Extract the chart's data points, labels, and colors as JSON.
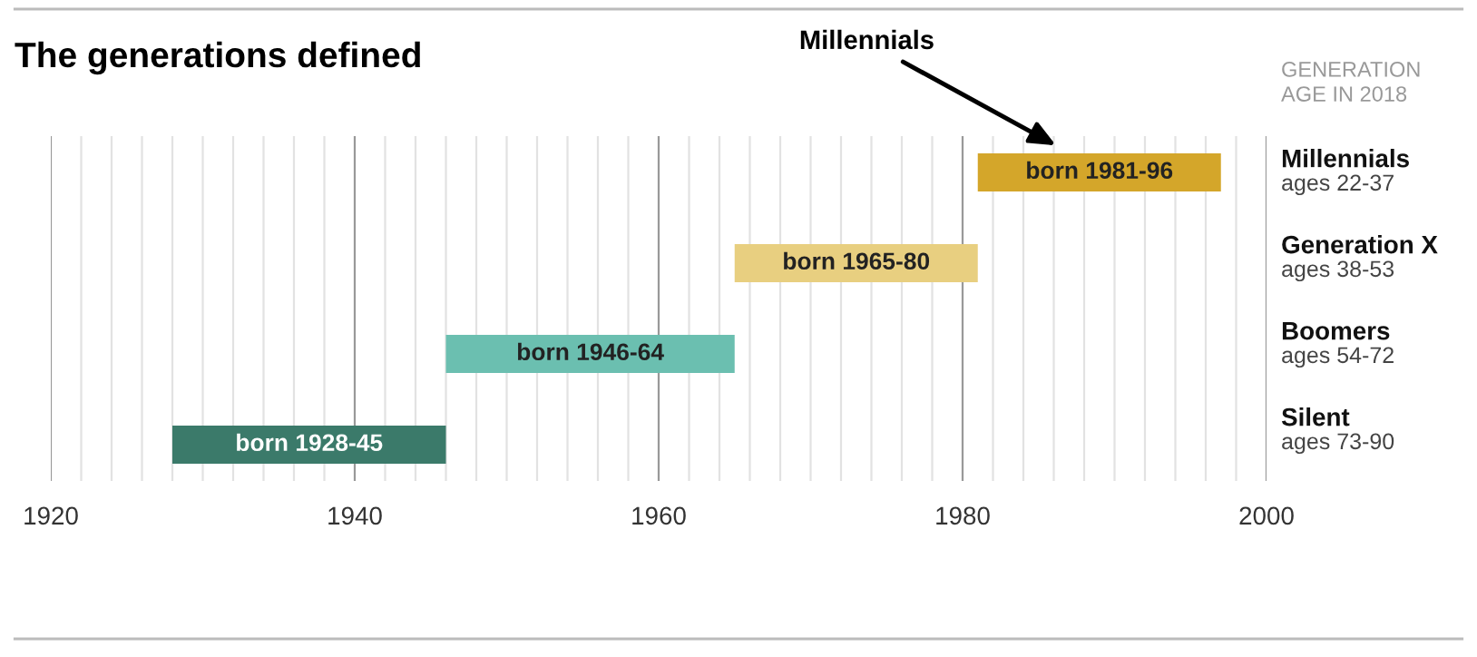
{
  "chart_data": {
    "type": "bar",
    "orientation": "horizontal",
    "title": "The generations defined",
    "categories": [
      "Millennials\nages 22-37",
      "Generation X\nages 38-53",
      "Boomers\nages 54-72",
      "Silent\nages 73-90"
    ],
    "base": [
      1981,
      1965,
      1946,
      1928
    ],
    "values": [
      16,
      16,
      19,
      18
    ],
    "colors": [
      "#d4a62a",
      "#e8cf80",
      "#6bbfb0",
      "#3b7a6a"
    ],
    "value_labels": [
      "born 1981-96",
      "born 1965-80",
      "born 1946-64",
      "born 1928-45"
    ],
    "xlim": [
      1920,
      2000
    ],
    "xticks": [
      1920,
      {
        "value": 1922,
        "label": null
      },
      {
        "value": 1924,
        "label": null
      },
      {
        "value": 1926,
        "label": null
      },
      {
        "value": 1928,
        "label": null
      },
      {
        "value": 1930,
        "label": null
      },
      {
        "value": 1932,
        "label": null
      },
      {
        "value": 1934,
        "label": null
      },
      {
        "value": 1936,
        "label": null
      },
      {
        "value": 1938,
        "label": null
      },
      1940,
      {
        "value": 1942,
        "label": null
      },
      {
        "value": 1944,
        "label": null
      },
      {
        "value": 1946,
        "label": null
      },
      {
        "value": 1948,
        "label": null
      },
      {
        "value": 1950,
        "label": null
      },
      {
        "value": 1952,
        "label": null
      },
      {
        "value": 1954,
        "label": null
      },
      {
        "value": 1956,
        "label": null
      },
      {
        "value": 1958,
        "label": null
      },
      1960,
      {
        "value": 1962,
        "label": null
      },
      {
        "value": 1964,
        "label": null
      },
      {
        "value": 1966,
        "label": null
      },
      {
        "value": 1968,
        "label": null
      },
      {
        "value": 1970,
        "label": null
      },
      {
        "value": 1972,
        "label": null
      },
      {
        "value": 1974,
        "label": null
      },
      {
        "value": 1976,
        "label": null
      },
      {
        "value": 1978,
        "label": null
      },
      1980,
      {
        "value": 1982,
        "label": null
      },
      {
        "value": 1984,
        "label": null
      },
      {
        "value": 1986,
        "label": null
      },
      {
        "value": 1988,
        "label": null
      },
      {
        "value": 1990,
        "label": null
      },
      {
        "value": 1992,
        "label": null
      },
      {
        "value": 1994,
        "label": null
      },
      {
        "value": 1996,
        "label": null
      },
      {
        "value": 1998,
        "label": null
      },
      2000
    ],
    "grid": "x",
    "annotations": [
      "Millennials",
      "GENERATION\nAGE IN 2018"
    ]
  }
}
